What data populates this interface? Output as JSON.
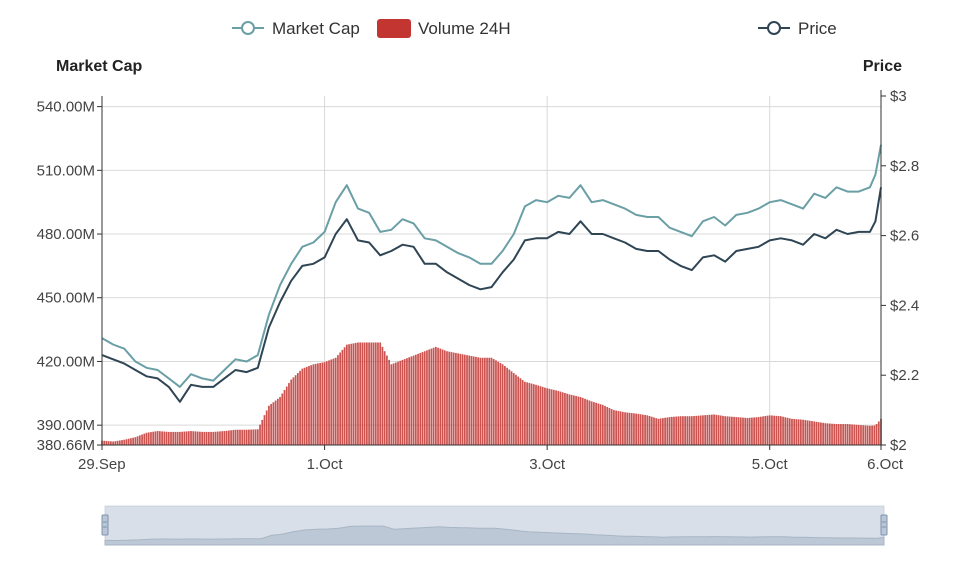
{
  "chart_data": {
    "type": "line",
    "legend": [
      {
        "name": "Market Cap",
        "symbol": "line-circle",
        "color": "#6a9fa6"
      },
      {
        "name": "Volume 24H",
        "symbol": "rect",
        "color": "#c23531"
      },
      {
        "name": "Price",
        "symbol": "line-circle",
        "color": "#2f4554"
      }
    ],
    "legend_position": "top-center",
    "y_left": {
      "name": "Market Cap",
      "min": 380.66,
      "max": 545,
      "ticks": [
        {
          "value": 380.66,
          "label": "380.66M"
        },
        {
          "value": 390,
          "label": "390.00M"
        },
        {
          "value": 420,
          "label": "420.00M"
        },
        {
          "value": 450,
          "label": "450.00M"
        },
        {
          "value": 480,
          "label": "480.00M"
        },
        {
          "value": 510,
          "label": "510.00M"
        },
        {
          "value": 540,
          "label": "540.00M"
        }
      ]
    },
    "y_right": {
      "name": "Price",
      "min": 2,
      "max": 3,
      "ticks": [
        {
          "value": 2,
          "label": "$2"
        },
        {
          "value": 2.2,
          "label": "$2.2"
        },
        {
          "value": 2.4,
          "label": "$2.4"
        },
        {
          "value": 2.6,
          "label": "$2.6"
        },
        {
          "value": 2.8,
          "label": "$2.8"
        },
        {
          "value": 3,
          "label": "$3"
        }
      ]
    },
    "x_axis": {
      "min": 0,
      "max": 7,
      "unit": "days since 29.Sep",
      "ticks": [
        {
          "value": 0,
          "label": "29.Sep"
        },
        {
          "value": 2,
          "label": "1.Oct"
        },
        {
          "value": 4,
          "label": "3.Oct"
        },
        {
          "value": 6,
          "label": "5.Oct"
        },
        {
          "value": 7,
          "label": "6.Oct"
        }
      ]
    },
    "volume_scale_max": 800,
    "series": [
      {
        "name": "Market Cap",
        "axis": "left",
        "x": [
          0,
          0.1,
          0.2,
          0.3,
          0.4,
          0.5,
          0.6,
          0.7,
          0.8,
          0.9,
          1.0,
          1.1,
          1.2,
          1.3,
          1.4,
          1.5,
          1.6,
          1.7,
          1.8,
          1.9,
          2.0,
          2.1,
          2.2,
          2.3,
          2.4,
          2.5,
          2.6,
          2.7,
          2.8,
          2.9,
          3.0,
          3.1,
          3.2,
          3.3,
          3.4,
          3.5,
          3.6,
          3.7,
          3.8,
          3.9,
          4.0,
          4.1,
          4.2,
          4.3,
          4.4,
          4.5,
          4.6,
          4.7,
          4.8,
          4.9,
          5.0,
          5.1,
          5.2,
          5.3,
          5.4,
          5.5,
          5.6,
          5.7,
          5.8,
          5.9,
          6.0,
          6.1,
          6.2,
          6.3,
          6.4,
          6.5,
          6.6,
          6.7,
          6.8,
          6.9,
          6.95,
          7.0
        ],
        "values": [
          431,
          428,
          426,
          420,
          417,
          416,
          412,
          408,
          414,
          412,
          411,
          416,
          421,
          420,
          423,
          442,
          456,
          466,
          474,
          476,
          481,
          495,
          503,
          492,
          490,
          481,
          482,
          487,
          485,
          478,
          477,
          474,
          471,
          469,
          466,
          466,
          472,
          480,
          493,
          496,
          495,
          498,
          497,
          503,
          495,
          496,
          494,
          492,
          489,
          488,
          488,
          483,
          481,
          479,
          486,
          488,
          484,
          489,
          490,
          492,
          495,
          496,
          494,
          492,
          499,
          497,
          502,
          500,
          500,
          502,
          508,
          522
        ]
      },
      {
        "name": "Price",
        "axis": "left",
        "x": [
          0,
          0.1,
          0.2,
          0.3,
          0.4,
          0.5,
          0.6,
          0.7,
          0.8,
          0.9,
          1.0,
          1.1,
          1.2,
          1.3,
          1.4,
          1.5,
          1.6,
          1.7,
          1.8,
          1.9,
          2.0,
          2.1,
          2.2,
          2.3,
          2.4,
          2.5,
          2.6,
          2.7,
          2.8,
          2.9,
          3.0,
          3.1,
          3.2,
          3.3,
          3.4,
          3.5,
          3.6,
          3.7,
          3.8,
          3.9,
          4.0,
          4.1,
          4.2,
          4.3,
          4.4,
          4.5,
          4.6,
          4.7,
          4.8,
          4.9,
          5.0,
          5.1,
          5.2,
          5.3,
          5.4,
          5.5,
          5.6,
          5.7,
          5.8,
          5.9,
          6.0,
          6.1,
          6.2,
          6.3,
          6.4,
          6.5,
          6.6,
          6.7,
          6.8,
          6.9,
          6.95,
          7.0
        ],
        "values": [
          423,
          421,
          419,
          416,
          413,
          412,
          408,
          401,
          409,
          408,
          408,
          412,
          416,
          415,
          417,
          436,
          448,
          458,
          465,
          466,
          469,
          480,
          487,
          477,
          476,
          470,
          472,
          475,
          474,
          466,
          466,
          462,
          459,
          456,
          454,
          455,
          462,
          468,
          477,
          478,
          478,
          481,
          480,
          486,
          480,
          480,
          478,
          476,
          473,
          472,
          472,
          468,
          465,
          463,
          469,
          470,
          467,
          472,
          473,
          474,
          477,
          478,
          477,
          475,
          480,
          478,
          482,
          480,
          481,
          481,
          486,
          502
        ]
      },
      {
        "name": "Volume 24H",
        "axis": "volume",
        "bar_width_days": 0.02,
        "x": [
          0,
          0.1,
          0.2,
          0.3,
          0.4,
          0.5,
          0.6,
          0.7,
          0.8,
          0.9,
          1.0,
          1.1,
          1.2,
          1.3,
          1.4,
          1.5,
          1.6,
          1.7,
          1.8,
          1.9,
          2.0,
          2.1,
          2.2,
          2.3,
          2.4,
          2.5,
          2.6,
          2.7,
          2.8,
          2.9,
          3.0,
          3.1,
          3.2,
          3.3,
          3.4,
          3.5,
          3.6,
          3.7,
          3.8,
          3.9,
          4.0,
          4.1,
          4.2,
          4.3,
          4.4,
          4.5,
          4.6,
          4.7,
          4.8,
          4.9,
          5.0,
          5.1,
          5.2,
          5.3,
          5.4,
          5.5,
          5.6,
          5.7,
          5.8,
          5.9,
          6.0,
          6.1,
          6.2,
          6.3,
          6.4,
          6.5,
          6.6,
          6.7,
          6.8,
          6.9,
          6.95,
          7.0
        ],
        "values": [
          10,
          8,
          12,
          18,
          28,
          32,
          30,
          30,
          32,
          30,
          30,
          32,
          35,
          35,
          36,
          90,
          110,
          150,
          175,
          185,
          190,
          200,
          230,
          235,
          235,
          235,
          185,
          195,
          205,
          215,
          225,
          215,
          210,
          205,
          200,
          200,
          185,
          165,
          145,
          138,
          130,
          124,
          116,
          110,
          100,
          92,
          80,
          75,
          72,
          68,
          60,
          64,
          66,
          66,
          68,
          70,
          66,
          64,
          62,
          64,
          68,
          66,
          60,
          58,
          54,
          50,
          48,
          48,
          46,
          44,
          45,
          60
        ]
      }
    ],
    "data_zoom": {
      "start_percent": 0,
      "end_percent": 100
    }
  }
}
